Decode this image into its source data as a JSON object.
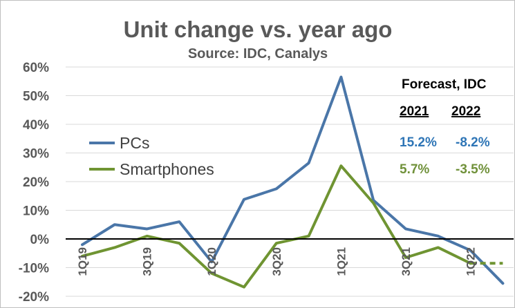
{
  "colors": {
    "pcs": "#4a76a8",
    "smartphones": "#6f9432",
    "pcs_text": "#2e75b6",
    "smartphones_text": "#70913a",
    "grid": "#d9d9d9",
    "text": "#595959"
  },
  "chart_data": {
    "type": "line",
    "title": "Unit change vs. year ago",
    "subtitle": "Source: IDC, Canalys",
    "quarters": [
      "1Q19",
      "2Q19",
      "3Q19",
      "4Q19",
      "1Q20",
      "2Q20",
      "3Q20",
      "4Q20",
      "1Q21",
      "2Q21",
      "3Q21",
      "4Q21",
      "1Q22",
      "2Q22"
    ],
    "x_tick_labels": [
      "1Q19",
      "",
      "3Q19",
      "",
      "1Q20",
      "",
      "3Q20",
      "",
      "1Q21",
      "",
      "3Q21",
      "",
      "1Q22",
      ""
    ],
    "series": [
      {
        "name": "PCs",
        "values": [
          -2,
          5,
          3.5,
          6,
          -8,
          13.8,
          17.5,
          26.5,
          56.5,
          13.5,
          3.5,
          1,
          -4,
          -15.5
        ],
        "dashed_values": []
      },
      {
        "name": "Smartphones",
        "values": [
          -6,
          -3,
          1,
          -1.5,
          -12,
          -16.8,
          -1.5,
          1,
          25.5,
          12.5,
          -6.5,
          -3,
          -8.5,
          null
        ],
        "dashed_values": [
          [
            12,
            -8.5
          ],
          [
            13,
            -8.5
          ]
        ]
      }
    ],
    "y_tick_labels": [
      "60%",
      "50%",
      "40%",
      "30%",
      "20%",
      "10%",
      "0%",
      "-10%",
      "-20%"
    ],
    "y_ticks": [
      60,
      50,
      40,
      30,
      20,
      10,
      0,
      -10,
      -20
    ],
    "ylim": [
      -20,
      60
    ],
    "grid": true,
    "legend_position": "left",
    "forecast": {
      "title": "Forecast, IDC",
      "years": [
        "2021",
        "2022"
      ],
      "rows": [
        {
          "series": "PCs",
          "values": [
            "15.2%",
            "-8.2%"
          ]
        },
        {
          "series": "Smartphones",
          "values": [
            "5.7%",
            "-3.5%"
          ]
        }
      ]
    }
  }
}
